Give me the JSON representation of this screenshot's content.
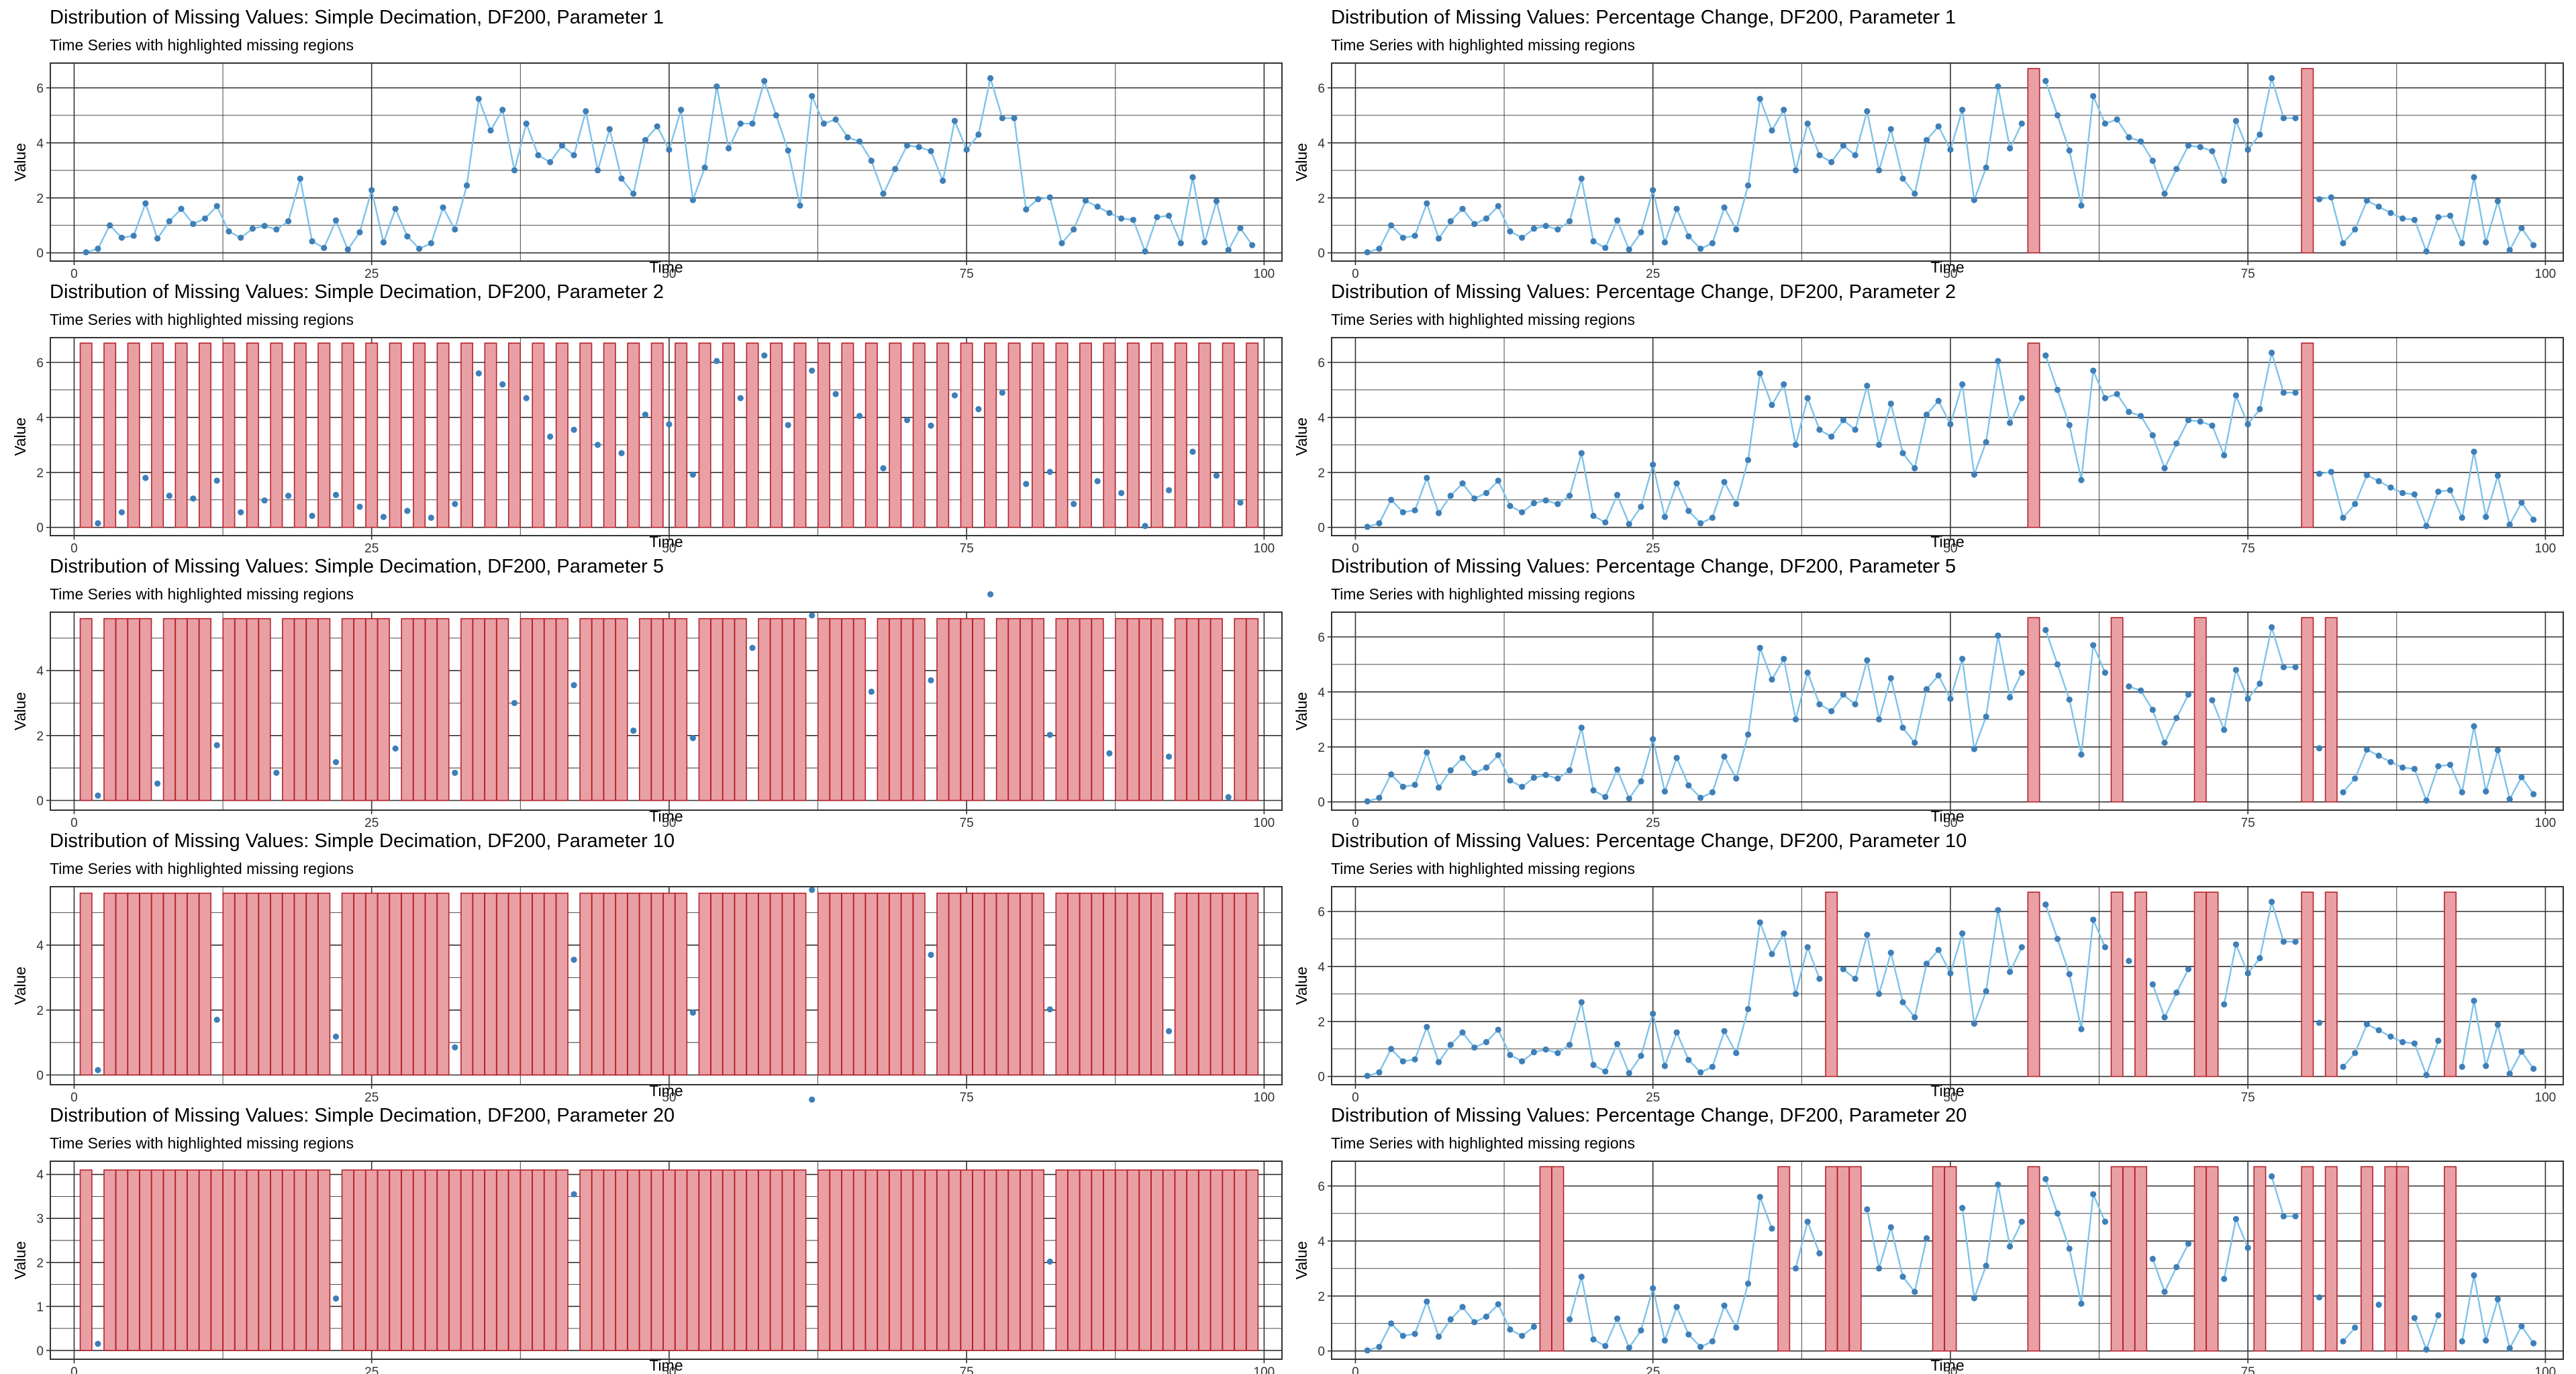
{
  "colors": {
    "line": "#7ec3ea",
    "point": "#3f7fb8",
    "gap_fill": "#e9a0a4",
    "gap_stroke": "#b5222b",
    "grid": "#333333",
    "frame": "#333333"
  },
  "shared": {
    "subtitle": "Time Series with highlighted missing regions",
    "xlabel": "Time",
    "ylabel": "Value",
    "x_ticks": [
      0,
      25,
      50,
      75,
      100
    ],
    "xlim": [
      -2,
      101.5
    ],
    "grid": true,
    "values": [
      0.02,
      0.15,
      1.0,
      0.55,
      0.62,
      1.8,
      0.52,
      1.15,
      1.6,
      1.05,
      1.25,
      1.7,
      0.78,
      0.55,
      0.88,
      0.98,
      0.85,
      1.15,
      2.7,
      0.42,
      0.18,
      1.18,
      0.12,
      0.75,
      2.28,
      0.38,
      1.6,
      0.6,
      0.15,
      0.35,
      1.65,
      0.85,
      2.45,
      5.6,
      4.45,
      5.2,
      3.0,
      4.7,
      3.55,
      3.3,
      3.9,
      3.55,
      5.15,
      3.0,
      4.5,
      2.7,
      2.15,
      4.1,
      4.6,
      3.75,
      5.2,
      1.92,
      3.1,
      6.05,
      3.8,
      4.7,
      4.7,
      6.25,
      5.0,
      3.72,
      1.72,
      5.7,
      4.7,
      4.85,
      4.2,
      4.05,
      3.35,
      2.15,
      3.05,
      3.9,
      3.85,
      3.7,
      2.62,
      4.8,
      3.75,
      4.3,
      6.35,
      4.9,
      4.9,
      1.58,
      1.95,
      2.02,
      0.35,
      0.85,
      1.9,
      1.68,
      1.45,
      1.25,
      1.2,
      0.05,
      1.3,
      1.35,
      0.35,
      2.75,
      0.38,
      1.88,
      0.1,
      0.9,
      0.28
    ]
  },
  "chart_data": [
    {
      "type": "line",
      "title": "Distribution of Missing Values: Simple Decimation, DF200, Parameter 1",
      "subtitle": "Time Series with highlighted missing regions",
      "xlabel": "Time",
      "ylabel": "Value",
      "ylim": [
        -0.3,
        6.9
      ],
      "y_ticks": [
        0,
        2,
        4,
        6
      ],
      "bar_height": 6.7,
      "missing_times": []
    },
    {
      "type": "line",
      "title": "Distribution of Missing Values: Percentage Change, DF200, Parameter 1",
      "subtitle": "Time Series with highlighted missing regions",
      "xlabel": "Time",
      "ylabel": "Value",
      "ylim": [
        -0.3,
        6.9
      ],
      "y_ticks": [
        0,
        2,
        4,
        6
      ],
      "bar_height": 6.7,
      "missing_times": [
        57,
        80
      ]
    },
    {
      "type": "line",
      "title": "Distribution of Missing Values: Simple Decimation, DF200, Parameter 2",
      "subtitle": "Time Series with highlighted missing regions",
      "xlabel": "Time",
      "ylabel": "Value",
      "ylim": [
        -0.3,
        6.9
      ],
      "y_ticks": [
        0,
        2,
        4,
        6
      ],
      "bar_height": 6.7,
      "missing_step": 2
    },
    {
      "type": "line",
      "title": "Distribution of Missing Values: Percentage Change, DF200, Parameter 2",
      "subtitle": "Time Series with highlighted missing regions",
      "xlabel": "Time",
      "ylabel": "Value",
      "ylim": [
        -0.3,
        6.9
      ],
      "y_ticks": [
        0,
        2,
        4,
        6
      ],
      "bar_height": 6.7,
      "missing_times": [
        57,
        80
      ]
    },
    {
      "type": "line",
      "title": "Distribution of Missing Values: Simple Decimation, DF200, Parameter 5",
      "subtitle": "Time Series with highlighted missing regions",
      "xlabel": "Time",
      "ylabel": "Value",
      "ylim": [
        -0.3,
        5.8
      ],
      "y_ticks": [
        0,
        2,
        4
      ],
      "bar_height": 5.6,
      "missing_step": 5
    },
    {
      "type": "line",
      "title": "Distribution of Missing Values: Percentage Change, DF200, Parameter 5",
      "subtitle": "Time Series with highlighted missing regions",
      "xlabel": "Time",
      "ylabel": "Value",
      "ylim": [
        -0.3,
        6.9
      ],
      "y_ticks": [
        0,
        2,
        4,
        6
      ],
      "bar_height": 6.7,
      "missing_times": [
        57,
        64,
        71,
        80,
        82
      ]
    },
    {
      "type": "line",
      "title": "Distribution of Missing Values: Simple Decimation, DF200, Parameter 10",
      "subtitle": "Time Series with highlighted missing regions",
      "xlabel": "Time",
      "ylabel": "Value",
      "ylim": [
        -0.3,
        5.8
      ],
      "y_ticks": [
        0,
        2,
        4
      ],
      "bar_height": 5.6,
      "missing_step": 10
    },
    {
      "type": "line",
      "title": "Distribution of Missing Values: Percentage Change, DF200, Parameter 10",
      "subtitle": "Time Series with highlighted missing regions",
      "xlabel": "Time",
      "ylabel": "Value",
      "ylim": [
        -0.3,
        6.9
      ],
      "y_ticks": [
        0,
        2,
        4,
        6
      ],
      "bar_height": 6.7,
      "missing_times": [
        40,
        57,
        64,
        66,
        71,
        72,
        80,
        82,
        92
      ]
    },
    {
      "type": "line",
      "title": "Distribution of Missing Values: Simple Decimation, DF200, Parameter 20",
      "subtitle": "Time Series with highlighted missing regions",
      "xlabel": "Time",
      "ylabel": "Value",
      "ylim": [
        -0.2,
        4.3
      ],
      "y_ticks": [
        0,
        1,
        2,
        3,
        4
      ],
      "bar_height": 4.1,
      "missing_step": 20
    },
    {
      "type": "line",
      "title": "Distribution of Missing Values: Percentage Change, DF200, Parameter 20",
      "subtitle": "Time Series with highlighted missing regions",
      "xlabel": "Time",
      "ylabel": "Value",
      "ylim": [
        -0.3,
        6.9
      ],
      "y_ticks": [
        0,
        2,
        4,
        6
      ],
      "bar_height": 6.7,
      "missing_times": [
        16,
        17,
        36,
        40,
        41,
        42,
        49,
        50,
        57,
        64,
        65,
        66,
        71,
        72,
        76,
        80,
        82,
        85,
        87,
        88,
        92
      ]
    }
  ]
}
